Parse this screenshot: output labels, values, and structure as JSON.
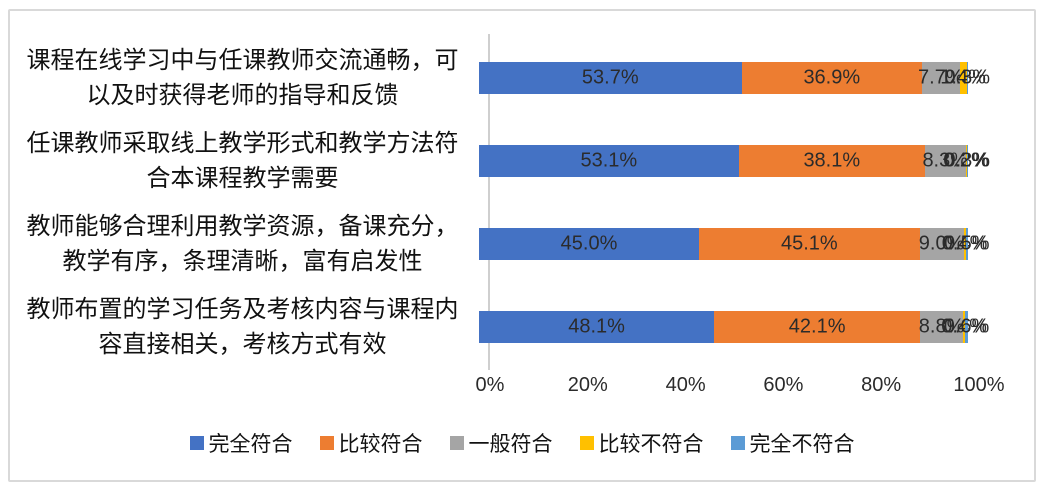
{
  "chart_data": {
    "type": "bar",
    "orientation": "horizontal",
    "stacked": true,
    "unit": "%",
    "categories": [
      "课程在线学习中与任课教师交流通畅，可以及时获得老师的指导和反馈",
      "任课教师采取线上教学形式和教学方法符合本课程教学需要",
      "教师能够合理利用教学资源，备课充分，教学有序，条理清晰，富有启发性",
      "教师布置的学习任务及考核内容与课程内容直接相关，考核方式有效"
    ],
    "series": [
      {
        "name": "完全符合",
        "color": "#4472C4",
        "values": [
          53.7,
          53.1,
          45.0,
          48.1
        ],
        "labels": [
          "53.7%",
          "53.1%",
          "45.0%",
          "48.1%"
        ]
      },
      {
        "name": "比较符合",
        "color": "#ED7D31",
        "values": [
          36.9,
          38.1,
          45.1,
          42.1
        ],
        "labels": [
          "36.9%",
          "38.1%",
          "45.1%",
          "42.1%"
        ]
      },
      {
        "name": "一般符合",
        "color": "#A5A5A5",
        "values": [
          7.7,
          8.3,
          9.0,
          8.8
        ],
        "labels": [
          "7.7%",
          "8.3%",
          "9.0%",
          "8.8%"
        ]
      },
      {
        "name": "比较不符合",
        "color": "#FFC000",
        "values": [
          1.4,
          0.2,
          0.4,
          0.4
        ],
        "labels": [
          "1.4%",
          "0.2%",
          "0.4%",
          "0.4%"
        ]
      },
      {
        "name": "完全不符合",
        "color": "#5B9BD5",
        "values": [
          0.3,
          0.3,
          0.5,
          0.6
        ],
        "labels": [
          "0.3%",
          "0.3%",
          "0.5%",
          "0.6%"
        ]
      }
    ],
    "x_axis": {
      "min": 0,
      "max": 100,
      "ticks": [
        "0%",
        "20%",
        "40%",
        "60%",
        "80%",
        "100%"
      ]
    },
    "legend": {
      "position": "bottom",
      "items": [
        "完全符合",
        "比较符合",
        "一般符合",
        "比较不符合",
        "完全不符合"
      ]
    },
    "grid": "off",
    "title": ""
  }
}
